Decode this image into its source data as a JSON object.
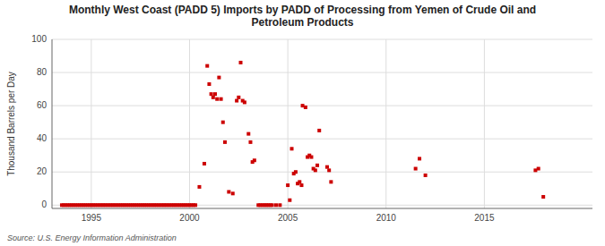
{
  "chart_data": {
    "type": "scatter",
    "title": "Monthly West Coast (PADD 5) Imports by PADD of Processing from Yemen of Crude Oil and\nPetroleum Products",
    "ylabel": "Thousand Barrels per Day",
    "annotation": "Source: U.S. Energy Information Administration",
    "color": "#cc0000",
    "marker": "square",
    "grid": true,
    "xlim": [
      1993.0,
      2020.5
    ],
    "ylim": [
      -2,
      100
    ],
    "xticks": [
      1995,
      2000,
      2005,
      2010,
      2015
    ],
    "yticks": [
      0,
      20,
      40,
      60,
      80,
      100
    ],
    "x": [
      1993.5,
      1993.6,
      1993.7,
      1993.8,
      1993.9,
      1994.0,
      1994.1,
      1994.2,
      1994.3,
      1994.4,
      1994.5,
      1994.6,
      1994.7,
      1994.8,
      1994.9,
      1995.0,
      1995.1,
      1995.2,
      1995.3,
      1995.4,
      1995.5,
      1995.6,
      1995.7,
      1995.8,
      1995.9,
      1996.0,
      1996.1,
      1996.2,
      1996.3,
      1996.4,
      1996.5,
      1996.6,
      1996.7,
      1996.8,
      1996.9,
      1997.0,
      1997.1,
      1997.2,
      1997.3,
      1997.4,
      1997.5,
      1997.6,
      1997.7,
      1997.8,
      1997.9,
      1998.0,
      1998.1,
      1998.2,
      1998.3,
      1998.4,
      1998.5,
      1998.6,
      1998.7,
      1998.8,
      1998.9,
      1999.0,
      1999.1,
      1999.2,
      1999.3,
      1999.4,
      1999.5,
      1999.6,
      1999.7,
      1999.8,
      1999.9,
      2000.0,
      2000.1,
      2000.2,
      2000.3,
      2000.5,
      2000.75,
      2000.9,
      2001.0,
      2001.1,
      2001.2,
      2001.3,
      2001.4,
      2001.5,
      2001.6,
      2001.7,
      2001.8,
      2002.0,
      2002.2,
      2002.4,
      2002.5,
      2002.6,
      2002.7,
      2002.8,
      2003.0,
      2003.1,
      2003.2,
      2003.3,
      2003.5,
      2003.6,
      2003.7,
      2003.8,
      2003.9,
      2004.0,
      2004.1,
      2004.2,
      2004.4,
      2004.6,
      2005.0,
      2005.1,
      2005.2,
      2005.3,
      2005.4,
      2005.5,
      2005.6,
      2005.7,
      2005.75,
      2005.9,
      2006.0,
      2006.1,
      2006.2,
      2006.3,
      2006.4,
      2006.5,
      2006.6,
      2007.0,
      2007.1,
      2007.2,
      2011.5,
      2011.7,
      2012.0,
      2017.6,
      2017.75,
      2018.0
    ],
    "values": [
      0,
      0,
      0,
      0,
      0,
      0,
      0,
      0,
      0,
      0,
      0,
      0,
      0,
      0,
      0,
      0,
      0,
      0,
      0,
      0,
      0,
      0,
      0,
      0,
      0,
      0,
      0,
      0,
      0,
      0,
      0,
      0,
      0,
      0,
      0,
      0,
      0,
      0,
      0,
      0,
      0,
      0,
      0,
      0,
      0,
      0,
      0,
      0,
      0,
      0,
      0,
      0,
      0,
      0,
      0,
      0,
      0,
      0,
      0,
      0,
      0,
      0,
      0,
      0,
      0,
      0,
      0,
      0,
      0,
      11,
      25,
      84,
      73,
      67,
      65,
      67,
      64,
      77,
      64,
      50,
      38,
      8,
      7,
      63,
      65,
      86,
      63,
      62,
      43,
      38,
      26,
      27,
      0,
      0,
      0,
      0,
      0,
      0,
      0,
      0,
      0,
      0,
      12,
      3,
      34,
      19,
      20,
      13,
      14,
      12,
      60,
      59,
      29,
      30,
      29,
      22,
      21,
      24,
      45,
      23,
      21,
      14,
      22,
      28,
      18,
      21,
      22,
      5
    ]
  }
}
